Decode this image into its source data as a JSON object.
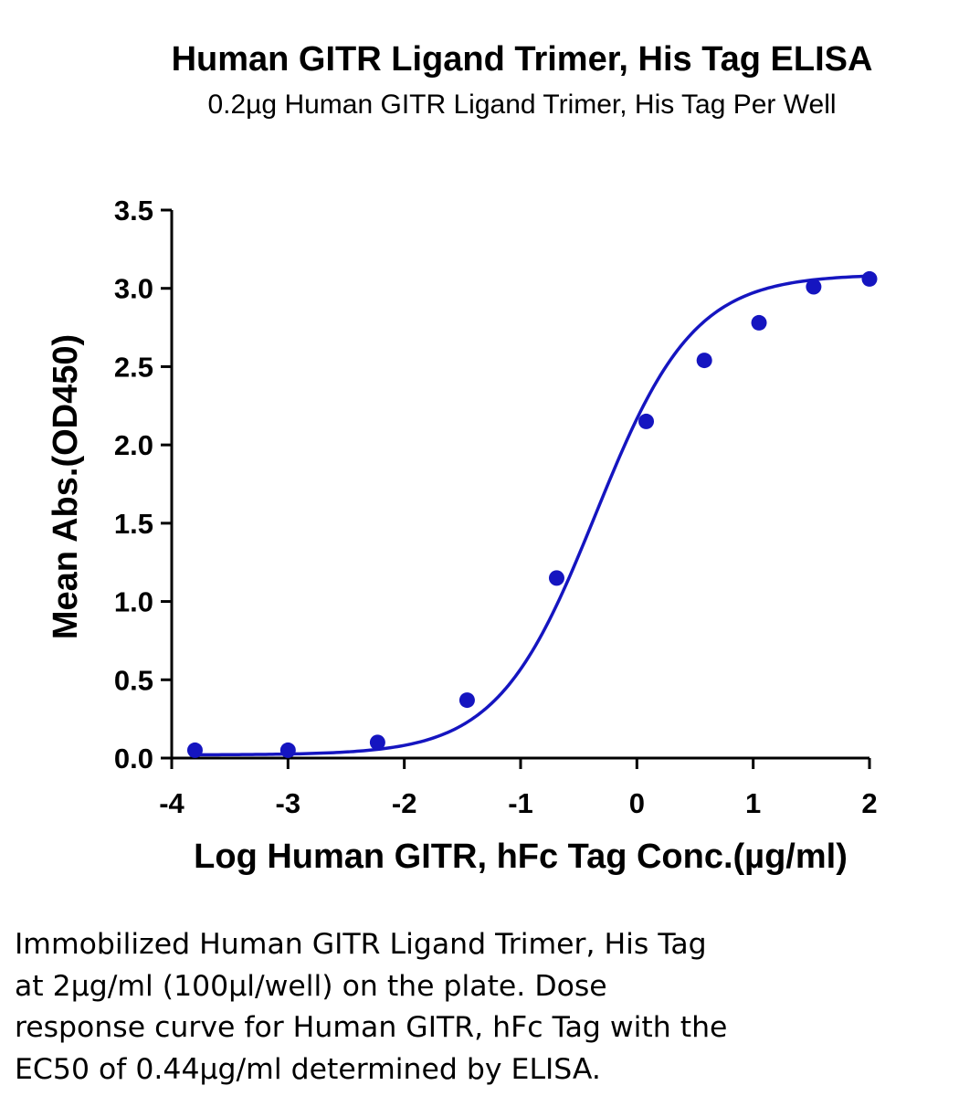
{
  "chart_data": {
    "type": "scatter",
    "title": "Human GITR Ligand Trimer, His Tag ELISA",
    "subtitle": "0.2µg Human GITR Ligand Trimer, His Tag Per Well",
    "xlabel": "Log Human GITR, hFc Tag Conc.(µg/ml)",
    "ylabel": "Mean Abs.(OD450)",
    "xlim": [
      -4,
      2
    ],
    "ylim": [
      0,
      3.5
    ],
    "xticks": [
      "-4",
      "-3",
      "-2",
      "-1",
      "0",
      "1",
      "2"
    ],
    "yticks": [
      "0.0",
      "0.5",
      "1.0",
      "1.5",
      "2.0",
      "2.5",
      "3.0",
      "3.5"
    ],
    "series": [
      {
        "x": [
          -3.8,
          -3.0,
          -2.23,
          -1.46,
          -0.69,
          0.08,
          0.58,
          1.05,
          1.52,
          2.0
        ],
        "y": [
          0.05,
          0.05,
          0.1,
          0.37,
          1.15,
          2.15,
          2.54,
          2.78,
          3.01,
          3.06
        ]
      }
    ],
    "fit_curve": {
      "model": "4PL",
      "bottom": 0.02,
      "top": 3.09,
      "log_ec50": -0.356,
      "hill_slope": 1.03
    },
    "grid": false,
    "legend": "none",
    "colors": {
      "series": "#1515c0"
    }
  },
  "caption": {
    "lines": [
      "Immobilized Human GITR Ligand Trimer, His Tag",
      "at 2µg/ml (100µl/well) on the plate. Dose",
      "response curve for Human GITR, hFc Tag with the",
      "EC50 of 0.44µg/ml determined by ELISA."
    ]
  }
}
